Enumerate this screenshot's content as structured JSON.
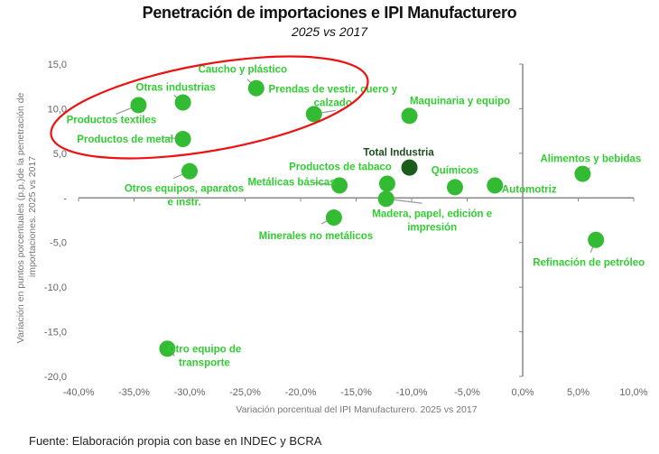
{
  "chart_data": {
    "type": "scatter",
    "title": "Penetración de importaciones e IPI Manufacturero",
    "subtitle": "2025 vs 2017",
    "xlabel": "Variación porcentual del IPI Manufacturero. 2025 vs 2017",
    "ylabel_lines": [
      "Variación en puntos porcentuales (p.p.)de la penetración de",
      "importaciones. 2025 vs 2017"
    ],
    "xlim": [
      -40,
      10
    ],
    "ylim": [
      -20,
      15
    ],
    "x_ticks": [
      -40,
      -35,
      -30,
      -25,
      -20,
      -15,
      -10,
      -5,
      0,
      5,
      10
    ],
    "x_tick_labels": [
      "-40,0%",
      "-35,0%",
      "-30,0%",
      "-25,0%",
      "-20,0%",
      "-15,0%",
      "-10,0%",
      "-5,0%",
      "0,0%",
      "5,0%",
      "10,0%"
    ],
    "y_ticks": [
      15,
      10,
      5,
      0,
      -5,
      -10,
      -15,
      -20
    ],
    "y_tick_labels": [
      "15,0",
      "10,0",
      "5,0",
      "-",
      "-5,0",
      "-10,0",
      "-15,0",
      "-20,0"
    ],
    "grid": false,
    "point_color": "#33bb33",
    "total_color": "#1a5c1a",
    "highlight_color": "#ee1111",
    "points": [
      {
        "name": "Productos textiles",
        "label_lines": [
          "Productos textiles"
        ],
        "x": -34.6,
        "y": 10.4
      },
      {
        "name": "Otras industrias",
        "label_lines": [
          "Otras industrias"
        ],
        "x": -30.6,
        "y": 10.7
      },
      {
        "name": "Productos de metal",
        "label_lines": [
          "Productos de metal"
        ],
        "x": -30.6,
        "y": 6.6
      },
      {
        "name": "Otros equipos, aparatos e instr.",
        "label_lines": [
          "Otros equipos, aparatos",
          "e instr."
        ],
        "x": -30.0,
        "y": 3.0
      },
      {
        "name": "Caucho y plástico",
        "label_lines": [
          "Caucho y plástico"
        ],
        "x": -24.0,
        "y": 12.3
      },
      {
        "name": "Prendas de vestir, cuero y calzado",
        "label_lines": [
          "Prendas de vestir, cuero y",
          "calzado"
        ],
        "x": -18.8,
        "y": 9.4
      },
      {
        "name": "Maquinaria y equipo",
        "label_lines": [
          "Maquinaria y equipo"
        ],
        "x": -10.2,
        "y": 9.2
      },
      {
        "name": "Total Industria",
        "label_lines": [
          "Total  Industria"
        ],
        "x": -10.2,
        "y": 3.4,
        "total": true
      },
      {
        "name": "Metálicas básicas",
        "label_lines": [
          "Metálicas básicas"
        ],
        "x": -16.5,
        "y": 1.4
      },
      {
        "name": "Productos de tabaco",
        "label_lines": [
          "Productos de tabaco"
        ],
        "x": -12.2,
        "y": 1.6
      },
      {
        "name": "Madera, papel, edición e impresión",
        "label_lines": [
          "Madera, papel, edición e",
          "impresión"
        ],
        "x": -12.3,
        "y": -0.1
      },
      {
        "name": "Químicos",
        "label_lines": [
          "Químicos"
        ],
        "x": -6.1,
        "y": 1.2
      },
      {
        "name": "Automotriz",
        "label_lines": [
          "Automotriz"
        ],
        "x": -2.5,
        "y": 1.4
      },
      {
        "name": "Minerales no metálicos",
        "label_lines": [
          "Minerales no metálicos"
        ],
        "x": -17.0,
        "y": -2.2
      },
      {
        "name": "Alimentos y bebidas",
        "label_lines": [
          "Alimentos y bebidas"
        ],
        "x": 5.4,
        "y": 2.7
      },
      {
        "name": "Refinación de petróleo",
        "label_lines": [
          "Refinación de petróleo"
        ],
        "x": 6.6,
        "y": -4.7
      },
      {
        "name": "Otro equipo de transporte",
        "label_lines": [
          "Otro equipo de",
          "transporte"
        ],
        "x": -32.0,
        "y": -16.9
      }
    ],
    "annotations": [
      {
        "type": "ellipse",
        "description": "Red ellipse highlighting Productos textiles, Otras industrias, Productos de metal, Caucho y plástico, Prendas de vestir"
      }
    ]
  },
  "source": "Fuente: Elaboración propia con base en INDEC y BCRA"
}
